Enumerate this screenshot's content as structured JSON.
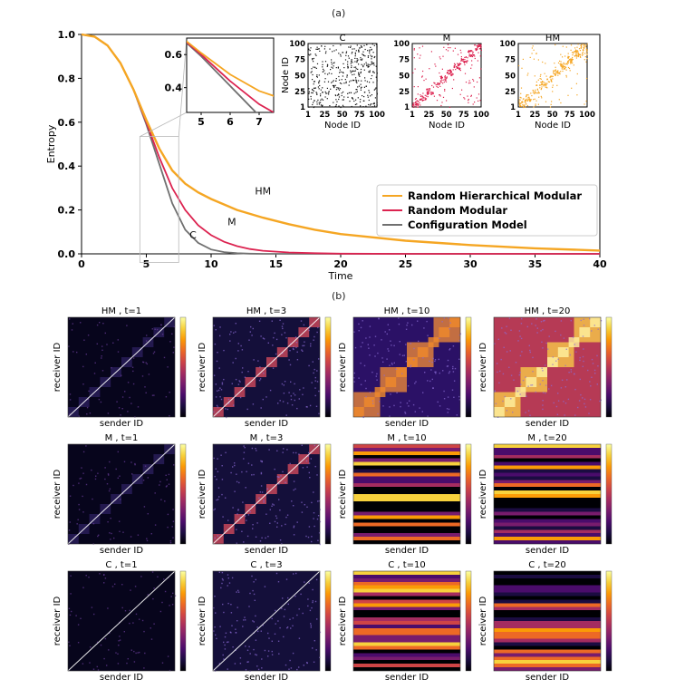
{
  "figure": {
    "label_a": "(a)",
    "label_b": "(b)"
  },
  "colors": {
    "hm": "#f5a623",
    "m": "#dc2350",
    "c": "#707070"
  },
  "chart_data": [
    {
      "type": "line",
      "panel": "(a)",
      "xlabel": "Time",
      "ylabel": "Entropy",
      "xlim": [
        0,
        40
      ],
      "ylim": [
        0,
        1
      ],
      "xticks": [
        0,
        5,
        10,
        15,
        20,
        25,
        30,
        35,
        40
      ],
      "yticks": [
        0.0,
        0.2,
        0.4,
        0.6,
        0.8,
        1.0
      ],
      "series": [
        {
          "name": "Random Hierarchical Modular",
          "label": "HM",
          "x": [
            0,
            1,
            2,
            3,
            4,
            5,
            6,
            7,
            8,
            9,
            10,
            12,
            14,
            16,
            18,
            20,
            25,
            30,
            35,
            40
          ],
          "values": [
            1.0,
            0.99,
            0.95,
            0.87,
            0.75,
            0.61,
            0.48,
            0.38,
            0.32,
            0.28,
            0.25,
            0.2,
            0.165,
            0.135,
            0.11,
            0.09,
            0.06,
            0.04,
            0.025,
            0.015
          ]
        },
        {
          "name": "Random Modular",
          "label": "M",
          "x": [
            0,
            1,
            2,
            3,
            4,
            5,
            6,
            7,
            8,
            9,
            10,
            11,
            12,
            13,
            14,
            16,
            18,
            20,
            25,
            30,
            35,
            40
          ],
          "values": [
            1.0,
            0.99,
            0.95,
            0.87,
            0.75,
            0.6,
            0.44,
            0.3,
            0.2,
            0.13,
            0.085,
            0.055,
            0.035,
            0.022,
            0.014,
            0.006,
            0.003,
            0.001,
            0.0,
            0.0,
            0.0,
            0.0
          ]
        },
        {
          "name": "Configuration Model",
          "label": "C",
          "x": [
            0,
            1,
            2,
            3,
            4,
            5,
            6,
            7,
            8,
            9,
            10,
            11,
            12,
            13,
            14,
            16,
            20,
            40
          ],
          "values": [
            1.0,
            0.99,
            0.95,
            0.87,
            0.75,
            0.59,
            0.41,
            0.23,
            0.11,
            0.05,
            0.02,
            0.008,
            0.003,
            0.001,
            0.0,
            0.0,
            0.0,
            0.0
          ]
        }
      ],
      "legend": [
        "Random Hierarchical Modular",
        "Random Modular",
        "Configuration Model"
      ],
      "legend_position": "lower-right",
      "curve_labels": [
        "HM",
        "M",
        "C"
      ],
      "inset_zoom": {
        "xlim": [
          4.5,
          7.5
        ],
        "ylim": [
          0.25,
          0.7
        ],
        "xticks": [
          5,
          6,
          7
        ],
        "yticks": [
          0.4,
          0.6
        ]
      }
    },
    {
      "type": "scatter",
      "role": "adjacency-insets",
      "panels": [
        {
          "title": "C"
        },
        {
          "title": "M"
        },
        {
          "title": "HM"
        }
      ],
      "xlabel": "Node ID",
      "ylabel": "Node ID",
      "xticks": [
        1,
        25,
        50,
        75,
        100
      ],
      "yticks": [
        1,
        25,
        50,
        75,
        100
      ]
    },
    {
      "type": "heatmap",
      "panel": "(b)",
      "xlabel": "sender ID",
      "ylabel": "receiver ID",
      "rows": [
        {
          "model": "HM",
          "titles": [
            "HM , t=1",
            "HM , t=3",
            "HM , t=10",
            "HM , t=20"
          ]
        },
        {
          "model": "M",
          "titles": [
            "M , t=1",
            "M , t=3",
            "M , t=10",
            "M , t=20"
          ]
        },
        {
          "model": "C",
          "titles": [
            "C , t=1",
            "C , t=3",
            "C , t=10",
            "C , t=20"
          ]
        }
      ]
    }
  ]
}
